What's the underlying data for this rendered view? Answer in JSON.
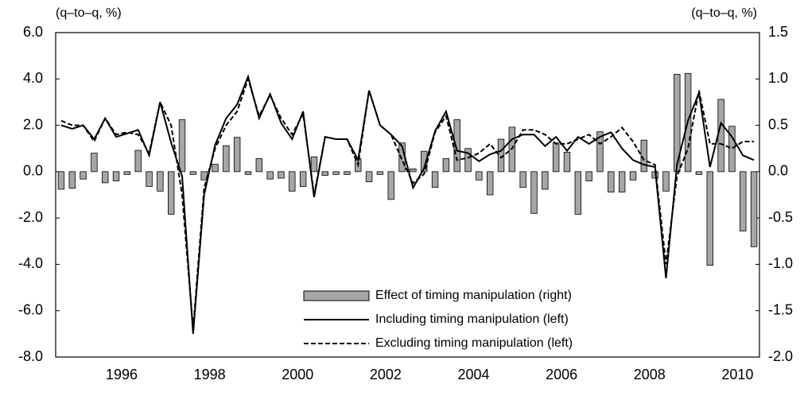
{
  "chart_data": {
    "type": "bar_line",
    "y_label": "(q–to–q,  %)",
    "y2_label": "(q–to–q,  %)",
    "categories": [
      null,
      null,
      null,
      null,
      null,
      null,
      "1996",
      null,
      null,
      null,
      null,
      null,
      null,
      null,
      "1998",
      null,
      null,
      null,
      null,
      null,
      null,
      null,
      "2000",
      null,
      null,
      null,
      null,
      null,
      null,
      null,
      "2002",
      null,
      null,
      null,
      null,
      null,
      null,
      null,
      "2004",
      null,
      null,
      null,
      null,
      null,
      null,
      null,
      "2006",
      null,
      null,
      null,
      null,
      null,
      null,
      null,
      "2008",
      null,
      null,
      null,
      null,
      null,
      null,
      null,
      "2010",
      null
    ],
    "series": [
      {
        "name": "Effect of timing manipulation (right)",
        "kind": "bar",
        "axis": "y2",
        "color": "#a6a6a6",
        "values": [
          -0.19,
          -0.18,
          -0.08,
          0.2,
          -0.12,
          -0.1,
          -0.03,
          0.23,
          -0.16,
          -0.21,
          -0.46,
          0.56,
          -0.03,
          -0.09,
          0.08,
          0.28,
          0.37,
          -0.03,
          0.14,
          -0.08,
          -0.07,
          -0.21,
          -0.16,
          0.16,
          -0.04,
          -0.03,
          -0.03,
          0.14,
          -0.11,
          -0.03,
          -0.3,
          0.31,
          0.03,
          0.22,
          -0.17,
          0.14,
          0.56,
          0.25,
          -0.09,
          -0.25,
          0.35,
          0.48,
          -0.17,
          -0.45,
          -0.19,
          0.31,
          0.21,
          -0.46,
          -0.1,
          0.43,
          -0.22,
          -0.22,
          -0.09,
          0.34,
          -0.07,
          -0.21,
          1.05,
          1.06,
          -0.03,
          -1.01,
          0.78,
          0.49,
          -0.64,
          -0.81
        ]
      },
      {
        "name": "Including timing manipulation (left)",
        "kind": "line",
        "dash": false,
        "color": "#000000",
        "values": [
          2.0,
          1.85,
          2.0,
          1.4,
          2.3,
          1.5,
          1.65,
          1.8,
          0.7,
          3.0,
          1.25,
          -0.2,
          -7.0,
          -1.0,
          1.15,
          2.3,
          2.9,
          4.1,
          2.3,
          3.35,
          2.1,
          1.4,
          2.6,
          -1.1,
          1.5,
          1.4,
          1.4,
          0.5,
          3.5,
          2.0,
          1.6,
          1.1,
          -0.7,
          0.15,
          1.75,
          2.6,
          0.9,
          0.8,
          0.45,
          0.75,
          0.9,
          1.4,
          1.6,
          1.6,
          1.1,
          1.5,
          0.9,
          1.5,
          1.2,
          1.5,
          1.7,
          1.0,
          0.5,
          0.3,
          0.2,
          -4.6,
          0.3,
          2.2,
          3.4,
          0.2,
          2.1,
          1.5,
          0.7,
          0.5
        ]
      },
      {
        "name": "Excluding timing manipulation (left)",
        "kind": "line",
        "dash": true,
        "color": "#000000",
        "values": [
          2.2,
          2.0,
          2.0,
          1.3,
          2.3,
          1.6,
          1.7,
          1.6,
          0.8,
          3.0,
          2.0,
          -1.0,
          -6.8,
          -0.7,
          1.0,
          2.0,
          2.6,
          4.0,
          2.4,
          3.3,
          2.3,
          1.6,
          2.5,
          -1.0,
          1.5,
          1.4,
          1.4,
          0.3,
          3.5,
          2.0,
          1.6,
          0.5,
          -0.5,
          -0.1,
          1.7,
          2.4,
          0.5,
          0.6,
          0.8,
          1.2,
          0.6,
          1.0,
          1.8,
          1.8,
          1.6,
          1.2,
          1.2,
          1.4,
          1.6,
          1.2,
          1.5,
          1.9,
          1.3,
          0.5,
          0.3,
          -4.0,
          -0.2,
          1.0,
          3.5,
          1.2,
          1.2,
          1.0,
          1.3,
          1.3
        ]
      }
    ],
    "ylim": [
      -8,
      6
    ],
    "yticks": [
      {
        "value": -8,
        "label": "-8.0"
      },
      {
        "value": -6,
        "label": "-6.0"
      },
      {
        "value": -4,
        "label": "-4.0"
      },
      {
        "value": -2,
        "label": "-2.0"
      },
      {
        "value": 0,
        "label": "0.0"
      },
      {
        "value": 2,
        "label": "2.0"
      },
      {
        "value": 4,
        "label": "4.0"
      },
      {
        "value": 6,
        "label": "6.0"
      }
    ],
    "y2lim": [
      -2,
      1.5
    ],
    "y2ticks": [
      {
        "value": -2,
        "label": "-2.0"
      },
      -1.5,
      {
        "value": -1,
        "label": "-1.0"
      },
      -0.5,
      {
        "value": 0,
        "label": "0.0"
      },
      0.5,
      {
        "value": 1,
        "label": "1.0"
      },
      1.5
    ],
    "legend": "lower center"
  }
}
